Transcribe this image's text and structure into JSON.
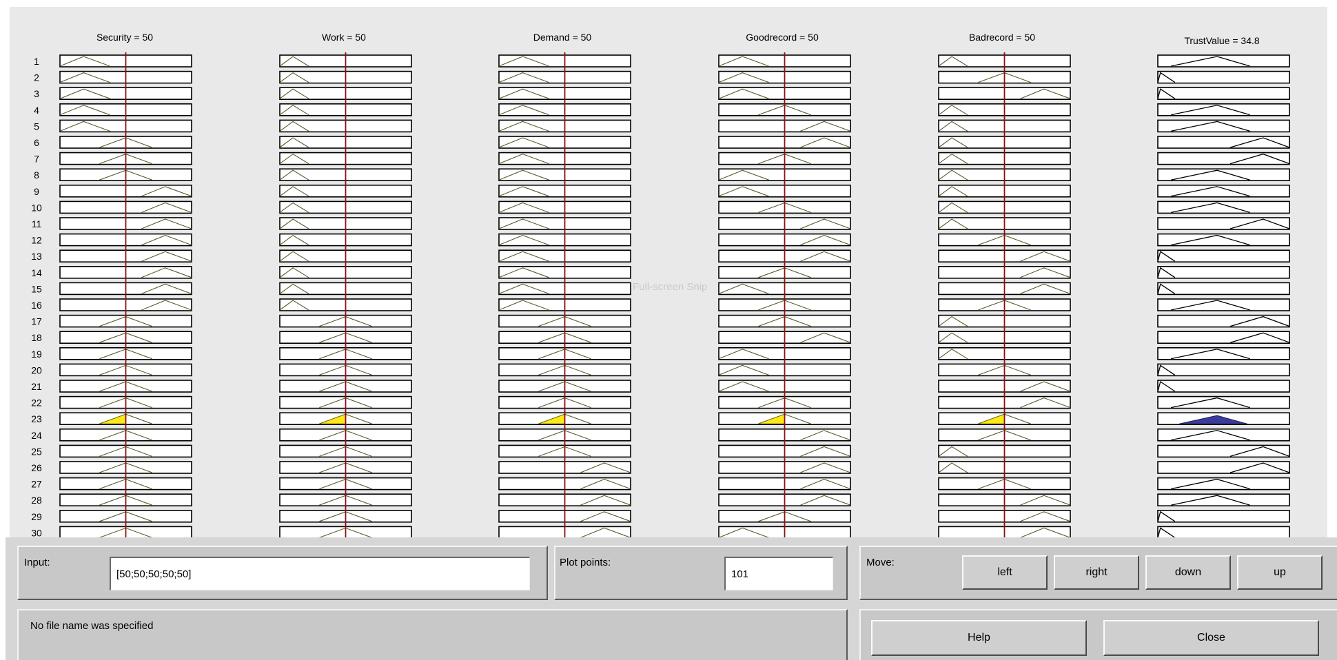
{
  "headers": {
    "security": "Security = 50",
    "work": "Work = 50",
    "demand": "Demand = 50",
    "goodrecord": "Goodrecord = 50",
    "badrecord": "Badrecord = 50",
    "trust": "TrustValue = 34.8"
  },
  "row_numbers": [
    "1",
    "2",
    "3",
    "4",
    "5",
    "6",
    "7",
    "8",
    "9",
    "10",
    "11",
    "12",
    "13",
    "14",
    "15",
    "16",
    "17",
    "18",
    "19",
    "20",
    "21",
    "22",
    "23",
    "24",
    "25",
    "26",
    "27",
    "28",
    "29",
    "30"
  ],
  "rules": {
    "security": [
      "L",
      "L",
      "L",
      "L",
      "L",
      "M",
      "M",
      "M",
      "H",
      "H",
      "H",
      "H",
      "H",
      "H",
      "H",
      "H",
      "M",
      "M",
      "M",
      "M",
      "M",
      "M",
      "M",
      "M",
      "M",
      "M",
      "M",
      "M",
      "M",
      "M"
    ],
    "work": [
      "l",
      "l",
      "l",
      "l",
      "l",
      "l",
      "l",
      "l",
      "l",
      "l",
      "l",
      "l",
      "l",
      "l",
      "l",
      "l",
      "M",
      "M",
      "M",
      "M",
      "M",
      "M",
      "M",
      "M",
      "M",
      "M",
      "M",
      "M",
      "M",
      "M"
    ],
    "demand": [
      "L",
      "L",
      "L",
      "L",
      "L",
      "L",
      "L",
      "L",
      "L",
      "L",
      "L",
      "L",
      "L",
      "L",
      "L",
      "L",
      "M",
      "M",
      "M",
      "M",
      "M",
      "M",
      "M",
      "M",
      "M",
      "H",
      "H",
      "H",
      "H",
      "H"
    ],
    "goodrecord": [
      "L",
      "L",
      "L",
      "M",
      "H",
      "H",
      "M",
      "L",
      "L",
      "M",
      "H",
      "H",
      "H",
      "M",
      "L",
      "M",
      "M",
      "H",
      "L",
      "L",
      "L",
      "M",
      "M",
      "H",
      "H",
      "H",
      "H",
      "H",
      "M",
      "L"
    ],
    "badrecord": [
      "l",
      "M",
      "H",
      "l",
      "l",
      "l",
      "l",
      "l",
      "l",
      "l",
      "l",
      "M",
      "H",
      "H",
      "H",
      "M",
      "l",
      "l",
      "l",
      "M",
      "H",
      "H",
      "M",
      "M",
      "l",
      "l",
      "M",
      "H",
      "H",
      "H"
    ],
    "trust": [
      "M",
      "s",
      "s",
      "M",
      "M",
      "H",
      "H",
      "M",
      "M",
      "M",
      "H",
      "M",
      "s",
      "s",
      "s",
      "M",
      "H",
      "H",
      "M",
      "s",
      "s",
      "M",
      "M",
      "M",
      "H",
      "H",
      "M",
      "M",
      "s",
      "s"
    ]
  },
  "aggregated_output_row": 23,
  "input_value": 50,
  "output_value": 34.8,
  "colors": {
    "rule_fill": "#ffe81a",
    "aggregate_fill": "#3b3b99",
    "cursor_line": "#8a1010",
    "background": "#e9e9e9",
    "panel": "#c8c8c8"
  },
  "watermark": "Full-screen Snip",
  "input": {
    "label": "Input:",
    "value": "[50;50;50;50;50]"
  },
  "plot_points": {
    "label": "Plot points:",
    "value": "101"
  },
  "move": {
    "label": "Move:",
    "buttons": [
      "left",
      "right",
      "down",
      "up"
    ]
  },
  "status": {
    "text": "No file name was specified"
  },
  "buttons": {
    "help": "Help",
    "close": "Close"
  }
}
